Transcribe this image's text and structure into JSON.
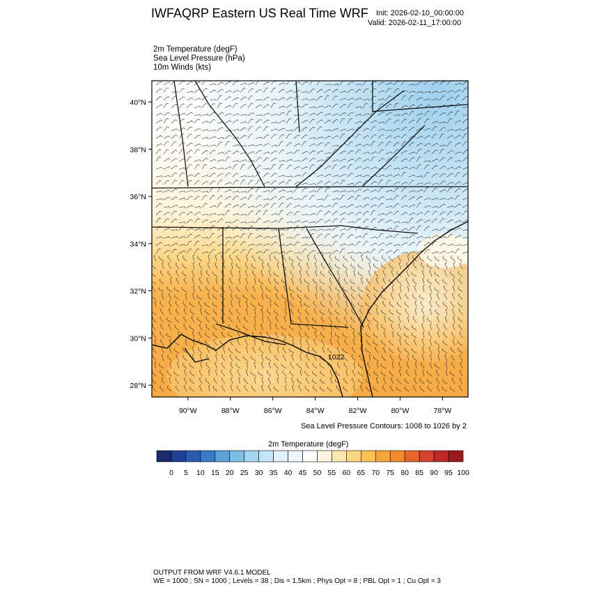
{
  "header": {
    "title": "IWFAQRP Eastern US Real Time WRF",
    "init": "Init: 2026-02-10_00:00:00",
    "valid": "Valid: 2026-02-11_17:00:00"
  },
  "fields": [
    "2m Temperature   (degF)",
    "Sea Level Pressure   (hPa)",
    "10m Winds   (kts)"
  ],
  "map": {
    "lat_range": [
      27.5,
      40.9
    ],
    "lon_range": [
      -91.7,
      -76.8
    ],
    "lat_ticks": [
      "28°N",
      "30°N",
      "32°N",
      "34°N",
      "36°N",
      "38°N",
      "40°N"
    ],
    "lon_ticks": [
      "90°W",
      "88°W",
      "86°W",
      "84°W",
      "82°W",
      "80°W",
      "78°W"
    ],
    "contour_label": "1022"
  },
  "slp_note": "Sea Level Pressure Contours: 1008 to 1026 by 2",
  "colorbar": {
    "title": "2m Temperature  (degF)",
    "labels": [
      "0",
      "5",
      "10",
      "15",
      "20",
      "25",
      "30",
      "35",
      "40",
      "45",
      "50",
      "55",
      "60",
      "65",
      "70",
      "75",
      "80",
      "85",
      "90",
      "95",
      "100"
    ],
    "colors": [
      "#1b2a6b",
      "#203f96",
      "#2a5cb0",
      "#3a7bc8",
      "#5aa2d8",
      "#7dbde6",
      "#a4d6f0",
      "#c6e6f6",
      "#e0f1fa",
      "#eef7fc",
      "#ffffff",
      "#fff6dd",
      "#fde9b0",
      "#fcd780",
      "#fbbf56",
      "#f7a53a",
      "#f28a2e",
      "#e8652a",
      "#d9422a",
      "#c0272d",
      "#9a1b1e"
    ]
  },
  "footer": {
    "line1": "OUTPUT FROM WRF V4.6.1 MODEL",
    "line2": "WE = 1000 ; SN = 1000 ; Levels = 38 ; Dis = 1.5km ; Phys Opt = 8 ; PBL Opt = 1 ; Cu Opt = 3"
  }
}
